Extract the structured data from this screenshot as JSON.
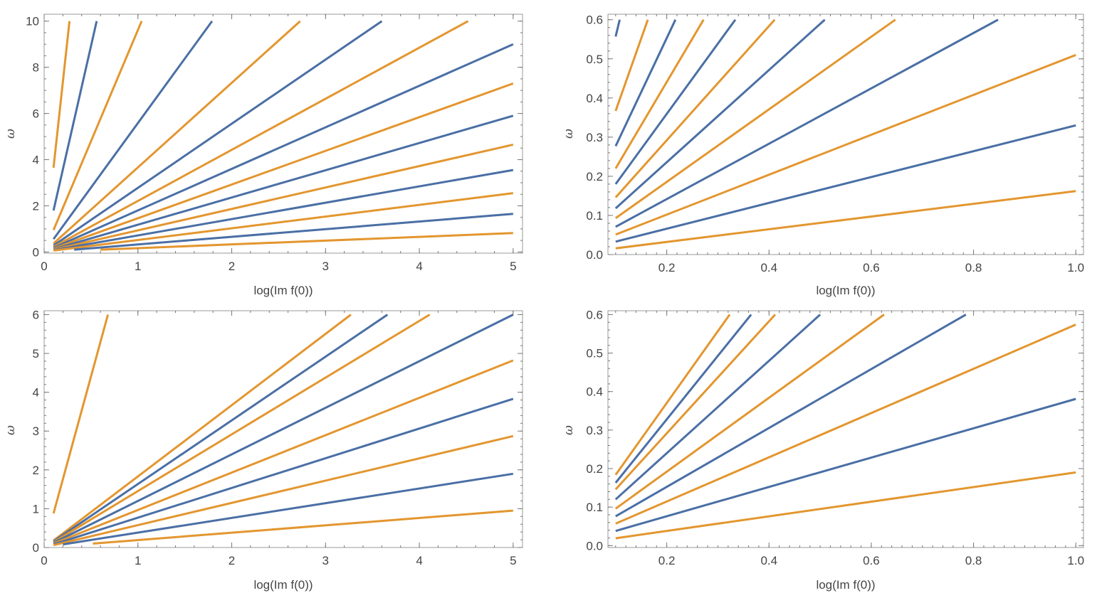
{
  "colors": {
    "blue": "#4a6fa5",
    "orange": "#e3962f"
  },
  "chart_data": [
    {
      "type": "line",
      "id": "top-left",
      "xlabel": "log(Im f(0))",
      "ylabel": "ω",
      "xlim": [
        0,
        5.1
      ],
      "ylim": [
        -0.05,
        10.3
      ],
      "xticks": [
        0,
        1,
        2,
        3,
        4,
        5
      ],
      "xtick_labels": [
        "0",
        "1",
        "2",
        "3",
        "4",
        "5"
      ],
      "yticks": [
        0,
        2,
        4,
        6,
        8,
        10
      ],
      "ytick_labels": [
        "0",
        "2",
        "4",
        "6",
        "8",
        "10"
      ],
      "xminor": 0.2,
      "yminor": 0.5,
      "series": [
        {
          "color": "orange",
          "x": [
            0.1,
            0.27
          ],
          "y": [
            3.65,
            10.0
          ]
        },
        {
          "color": "blue",
          "x": [
            0.1,
            0.56
          ],
          "y": [
            1.8,
            10.0
          ]
        },
        {
          "color": "orange",
          "x": [
            0.1,
            1.04
          ],
          "y": [
            0.95,
            10.0
          ]
        },
        {
          "color": "blue",
          "x": [
            0.1,
            1.79
          ],
          "y": [
            0.56,
            10.0
          ]
        },
        {
          "color": "orange",
          "x": [
            0.1,
            2.73
          ],
          "y": [
            0.37,
            10.0
          ]
        },
        {
          "color": "blue",
          "x": [
            0.1,
            3.6
          ],
          "y": [
            0.28,
            10.0
          ]
        },
        {
          "color": "orange",
          "x": [
            0.1,
            4.52
          ],
          "y": [
            0.22,
            10.0
          ]
        },
        {
          "color": "blue",
          "x": [
            0.1,
            5.0
          ],
          "y": [
            0.18,
            9.0
          ]
        },
        {
          "color": "orange",
          "x": [
            0.1,
            5.0
          ],
          "y": [
            0.15,
            7.3
          ]
        },
        {
          "color": "blue",
          "x": [
            0.1,
            5.0
          ],
          "y": [
            0.12,
            5.9
          ]
        },
        {
          "color": "orange",
          "x": [
            0.1,
            5.0
          ],
          "y": [
            0.1,
            4.65
          ]
        },
        {
          "color": "blue",
          "x": [
            0.1,
            5.0
          ],
          "y": [
            0.08,
            3.55
          ]
        },
        {
          "color": "orange",
          "x": [
            0.1,
            5.0
          ],
          "y": [
            0.06,
            2.55
          ]
        },
        {
          "color": "blue",
          "x": [
            0.32,
            5.0
          ],
          "y": [
            0.1,
            1.65
          ]
        },
        {
          "color": "orange",
          "x": [
            0.6,
            5.0
          ],
          "y": [
            0.1,
            0.82
          ]
        }
      ]
    },
    {
      "type": "line",
      "id": "top-right",
      "xlabel": "log(Im f(0))",
      "ylabel": "ω",
      "xlim": [
        0.085,
        1.015
      ],
      "ylim": [
        0.0,
        0.614
      ],
      "xticks": [
        0.2,
        0.4,
        0.6,
        0.8,
        1.0
      ],
      "xtick_labels": [
        "0.2",
        "0.4",
        "0.6",
        "0.8",
        "1.0"
      ],
      "yticks": [
        0.0,
        0.1,
        0.2,
        0.3,
        0.4,
        0.5,
        0.6
      ],
      "ytick_labels": [
        "0.0",
        "0.1",
        "0.2",
        "0.3",
        "0.4",
        "0.5",
        "0.6"
      ],
      "xminor": 0.02,
      "yminor": 0.02,
      "series": [
        {
          "color": "blue",
          "x": [
            0.1,
            0.108
          ],
          "y": [
            0.557,
            0.6
          ]
        },
        {
          "color": "orange",
          "x": [
            0.1,
            0.163
          ],
          "y": [
            0.367,
            0.6
          ]
        },
        {
          "color": "blue",
          "x": [
            0.1,
            0.217
          ],
          "y": [
            0.277,
            0.6
          ]
        },
        {
          "color": "orange",
          "x": [
            0.1,
            0.272
          ],
          "y": [
            0.22,
            0.6
          ]
        },
        {
          "color": "blue",
          "x": [
            0.1,
            0.334
          ],
          "y": [
            0.18,
            0.6
          ]
        },
        {
          "color": "orange",
          "x": [
            0.1,
            0.411
          ],
          "y": [
            0.146,
            0.6
          ]
        },
        {
          "color": "blue",
          "x": [
            0.1,
            0.509
          ],
          "y": [
            0.118,
            0.6
          ]
        },
        {
          "color": "orange",
          "x": [
            0.1,
            0.647
          ],
          "y": [
            0.093,
            0.6
          ]
        },
        {
          "color": "blue",
          "x": [
            0.1,
            0.848
          ],
          "y": [
            0.071,
            0.6
          ]
        },
        {
          "color": "orange",
          "x": [
            0.1,
            1.0
          ],
          "y": [
            0.051,
            0.51
          ]
        },
        {
          "color": "blue",
          "x": [
            0.1,
            1.0
          ],
          "y": [
            0.033,
            0.33
          ]
        },
        {
          "color": "orange",
          "x": [
            0.1,
            1.0
          ],
          "y": [
            0.016,
            0.162
          ]
        }
      ]
    },
    {
      "type": "line",
      "id": "bottom-left",
      "xlabel": "log(Im f(0))",
      "ylabel": "ω",
      "xlim": [
        0,
        5.1
      ],
      "ylim": [
        0,
        6.1
      ],
      "xticks": [
        0,
        1,
        2,
        3,
        4,
        5
      ],
      "xtick_labels": [
        "0",
        "1",
        "2",
        "3",
        "4",
        "5"
      ],
      "yticks": [
        0,
        1,
        2,
        3,
        4,
        5,
        6
      ],
      "ytick_labels": [
        "0",
        "1",
        "2",
        "3",
        "4",
        "5",
        "6"
      ],
      "xminor": 0.2,
      "yminor": 0.2,
      "series": [
        {
          "color": "orange",
          "x": [
            0.1,
            0.68
          ],
          "y": [
            0.88,
            6.0
          ]
        },
        {
          "color": "orange",
          "x": [
            0.1,
            3.27
          ],
          "y": [
            0.18,
            6.0
          ]
        },
        {
          "color": "blue",
          "x": [
            0.1,
            3.66
          ],
          "y": [
            0.16,
            6.0
          ]
        },
        {
          "color": "orange",
          "x": [
            0.1,
            4.11
          ],
          "y": [
            0.14,
            6.0
          ]
        },
        {
          "color": "blue",
          "x": [
            0.1,
            5.0
          ],
          "y": [
            0.12,
            6.0
          ]
        },
        {
          "color": "orange",
          "x": [
            0.1,
            5.0
          ],
          "y": [
            0.1,
            4.82
          ]
        },
        {
          "color": "blue",
          "x": [
            0.1,
            5.0
          ],
          "y": [
            0.08,
            3.83
          ]
        },
        {
          "color": "orange",
          "x": [
            0.1,
            5.0
          ],
          "y": [
            0.06,
            2.87
          ]
        },
        {
          "color": "blue",
          "x": [
            0.2,
            5.0
          ],
          "y": [
            0.08,
            1.9
          ]
        },
        {
          "color": "orange",
          "x": [
            0.52,
            5.0
          ],
          "y": [
            0.1,
            0.95
          ]
        }
      ]
    },
    {
      "type": "line",
      "id": "bottom-right",
      "xlabel": "log(Im f(0))",
      "ylabel": "ω",
      "xlim": [
        0.085,
        1.015
      ],
      "ylim": [
        -0.005,
        0.61
      ],
      "xticks": [
        0.2,
        0.4,
        0.6,
        0.8,
        1.0
      ],
      "xtick_labels": [
        "0.2",
        "0.4",
        "0.6",
        "0.8",
        "1.0"
      ],
      "yticks": [
        0.0,
        0.1,
        0.2,
        0.3,
        0.4,
        0.5,
        0.6
      ],
      "ytick_labels": [
        "0.0",
        "0.1",
        "0.2",
        "0.3",
        "0.4",
        "0.5",
        "0.6"
      ],
      "xminor": 0.02,
      "yminor": 0.02,
      "series": [
        {
          "color": "orange",
          "x": [
            0.1,
            0.323
          ],
          "y": [
            0.184,
            0.6
          ]
        },
        {
          "color": "blue",
          "x": [
            0.1,
            0.365
          ],
          "y": [
            0.163,
            0.6
          ]
        },
        {
          "color": "orange",
          "x": [
            0.1,
            0.412
          ],
          "y": [
            0.146,
            0.6
          ]
        },
        {
          "color": "blue",
          "x": [
            0.1,
            0.5
          ],
          "y": [
            0.12,
            0.6
          ]
        },
        {
          "color": "orange",
          "x": [
            0.1,
            0.625
          ],
          "y": [
            0.096,
            0.6
          ]
        },
        {
          "color": "blue",
          "x": [
            0.1,
            0.785
          ],
          "y": [
            0.076,
            0.6
          ]
        },
        {
          "color": "orange",
          "x": [
            0.1,
            1.0
          ],
          "y": [
            0.057,
            0.574
          ]
        },
        {
          "color": "blue",
          "x": [
            0.1,
            1.0
          ],
          "y": [
            0.038,
            0.381
          ]
        },
        {
          "color": "orange",
          "x": [
            0.1,
            1.0
          ],
          "y": [
            0.019,
            0.19
          ]
        }
      ]
    }
  ]
}
